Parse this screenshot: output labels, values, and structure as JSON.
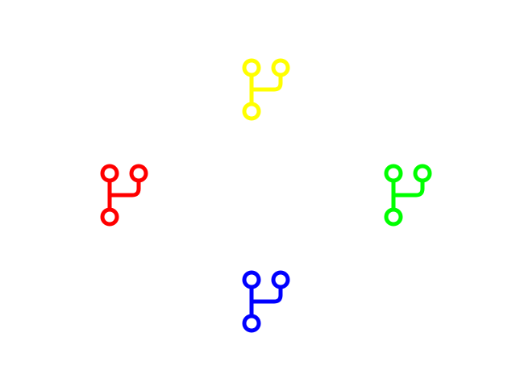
{
  "icons": [
    {
      "name": "git-branch-icon",
      "position": "top",
      "color": "#ffff00"
    },
    {
      "name": "git-branch-icon",
      "position": "left",
      "color": "#ff0000"
    },
    {
      "name": "git-branch-icon",
      "position": "right",
      "color": "#00ff00"
    },
    {
      "name": "git-branch-icon",
      "position": "bottom",
      "color": "#0000ff"
    }
  ]
}
